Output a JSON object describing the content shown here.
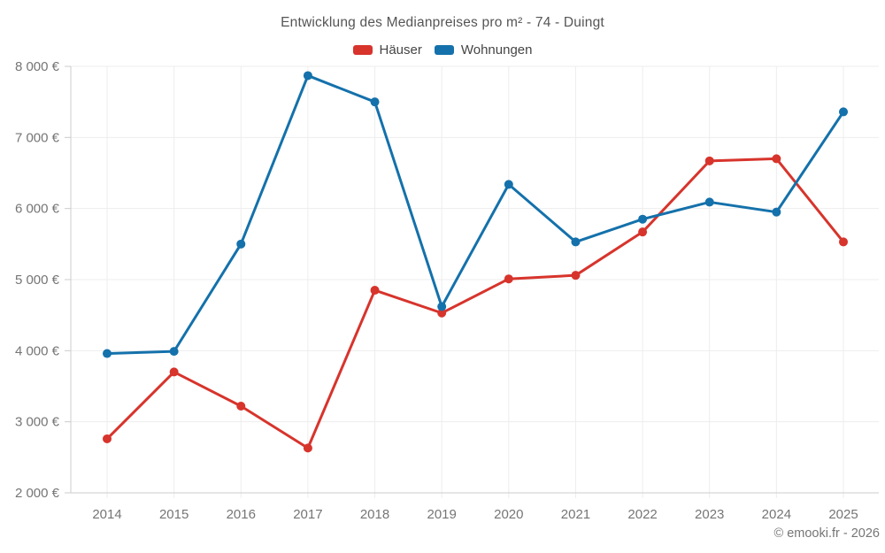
{
  "page": {
    "title": "Entwicklung des Medianpreises pro m² - 74 - Duingt",
    "footer": "© emooki.fr - 2026"
  },
  "chart_data": {
    "type": "line",
    "title": "Entwicklung des Medianpreises pro m² - 74 - Duingt",
    "categories": [
      "2014",
      "2015",
      "2016",
      "2017",
      "2018",
      "2019",
      "2020",
      "2021",
      "2022",
      "2023",
      "2024",
      "2025"
    ],
    "series": [
      {
        "name": "Häuser",
        "color": "#d7342c",
        "values": [
          2760,
          3700,
          3220,
          2630,
          4850,
          4530,
          5010,
          5060,
          5670,
          6670,
          6700,
          5530
        ]
      },
      {
        "name": "Wohnungen",
        "color": "#1471ab",
        "values": [
          3960,
          3990,
          5500,
          7870,
          7500,
          4620,
          6340,
          5530,
          5850,
          6090,
          5950,
          7360
        ]
      }
    ],
    "xlabel": "",
    "ylabel": "",
    "ylim": [
      2000,
      8000
    ],
    "yticks": [
      {
        "value": 2000,
        "label": "2 000 €"
      },
      {
        "value": 3000,
        "label": "3 000 €"
      },
      {
        "value": 4000,
        "label": "4 000 €"
      },
      {
        "value": 5000,
        "label": "5 000 €"
      },
      {
        "value": 6000,
        "label": "6 000 €"
      },
      {
        "value": 7000,
        "label": "7 000 €"
      },
      {
        "value": 8000,
        "label": "8 000 €"
      }
    ],
    "grid": true,
    "legend_position": "top",
    "marker": "circle"
  },
  "theme": {
    "grid_color": "#ededed",
    "axis_color": "#cccccc",
    "tick_text_color": "#757575",
    "title_color": "#555555",
    "legend_text_color": "#454545",
    "background": "#ffffff"
  }
}
